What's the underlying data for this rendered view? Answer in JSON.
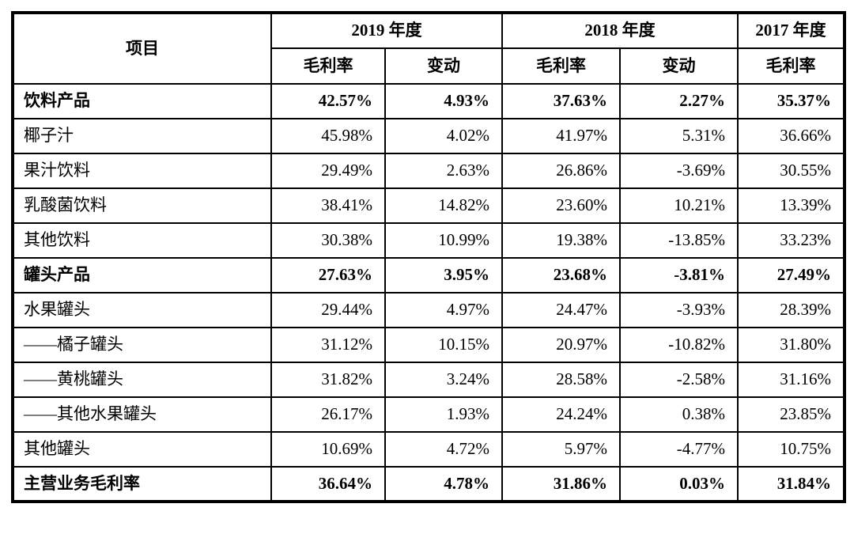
{
  "page": {
    "background": "#ffffff",
    "border_color": "#000000",
    "text_color": "#000000"
  },
  "table": {
    "header": {
      "item_label": "项目",
      "year_groups": [
        {
          "label": "2019 年度",
          "columns": [
            "毛利率",
            "变动"
          ]
        },
        {
          "label": "2018 年度",
          "columns": [
            "毛利率",
            "变动"
          ]
        },
        {
          "label": "2017 年度",
          "columns": [
            "毛利率"
          ]
        }
      ]
    },
    "rows": [
      {
        "label": "饮料产品",
        "bold": true,
        "values": [
          "42.57%",
          "4.93%",
          "37.63%",
          "2.27%",
          "35.37%"
        ]
      },
      {
        "label": "椰子汁",
        "bold": false,
        "values": [
          "45.98%",
          "4.02%",
          "41.97%",
          "5.31%",
          "36.66%"
        ]
      },
      {
        "label": "果汁饮料",
        "bold": false,
        "values": [
          "29.49%",
          "2.63%",
          "26.86%",
          "-3.69%",
          "30.55%"
        ]
      },
      {
        "label": "乳酸菌饮料",
        "bold": false,
        "values": [
          "38.41%",
          "14.82%",
          "23.60%",
          "10.21%",
          "13.39%"
        ]
      },
      {
        "label": "其他饮料",
        "bold": false,
        "values": [
          "30.38%",
          "10.99%",
          "19.38%",
          "-13.85%",
          "33.23%"
        ]
      },
      {
        "label": "罐头产品",
        "bold": true,
        "values": [
          "27.63%",
          "3.95%",
          "23.68%",
          "-3.81%",
          "27.49%"
        ]
      },
      {
        "label": "水果罐头",
        "bold": false,
        "values": [
          "29.44%",
          "4.97%",
          "24.47%",
          "-3.93%",
          "28.39%"
        ]
      },
      {
        "label": "——橘子罐头",
        "bold": false,
        "values": [
          "31.12%",
          "10.15%",
          "20.97%",
          "-10.82%",
          "31.80%"
        ]
      },
      {
        "label": "——黄桃罐头",
        "bold": false,
        "values": [
          "31.82%",
          "3.24%",
          "28.58%",
          "-2.58%",
          "31.16%"
        ]
      },
      {
        "label": "——其他水果罐头",
        "bold": false,
        "values": [
          "26.17%",
          "1.93%",
          "24.24%",
          "0.38%",
          "23.85%"
        ]
      },
      {
        "label": "其他罐头",
        "bold": false,
        "values": [
          "10.69%",
          "4.72%",
          "5.97%",
          "-4.77%",
          "10.75%"
        ]
      },
      {
        "label": "主营业务毛利率",
        "bold": true,
        "values": [
          "36.64%",
          "4.78%",
          "31.86%",
          "0.03%",
          "31.84%"
        ]
      }
    ]
  }
}
